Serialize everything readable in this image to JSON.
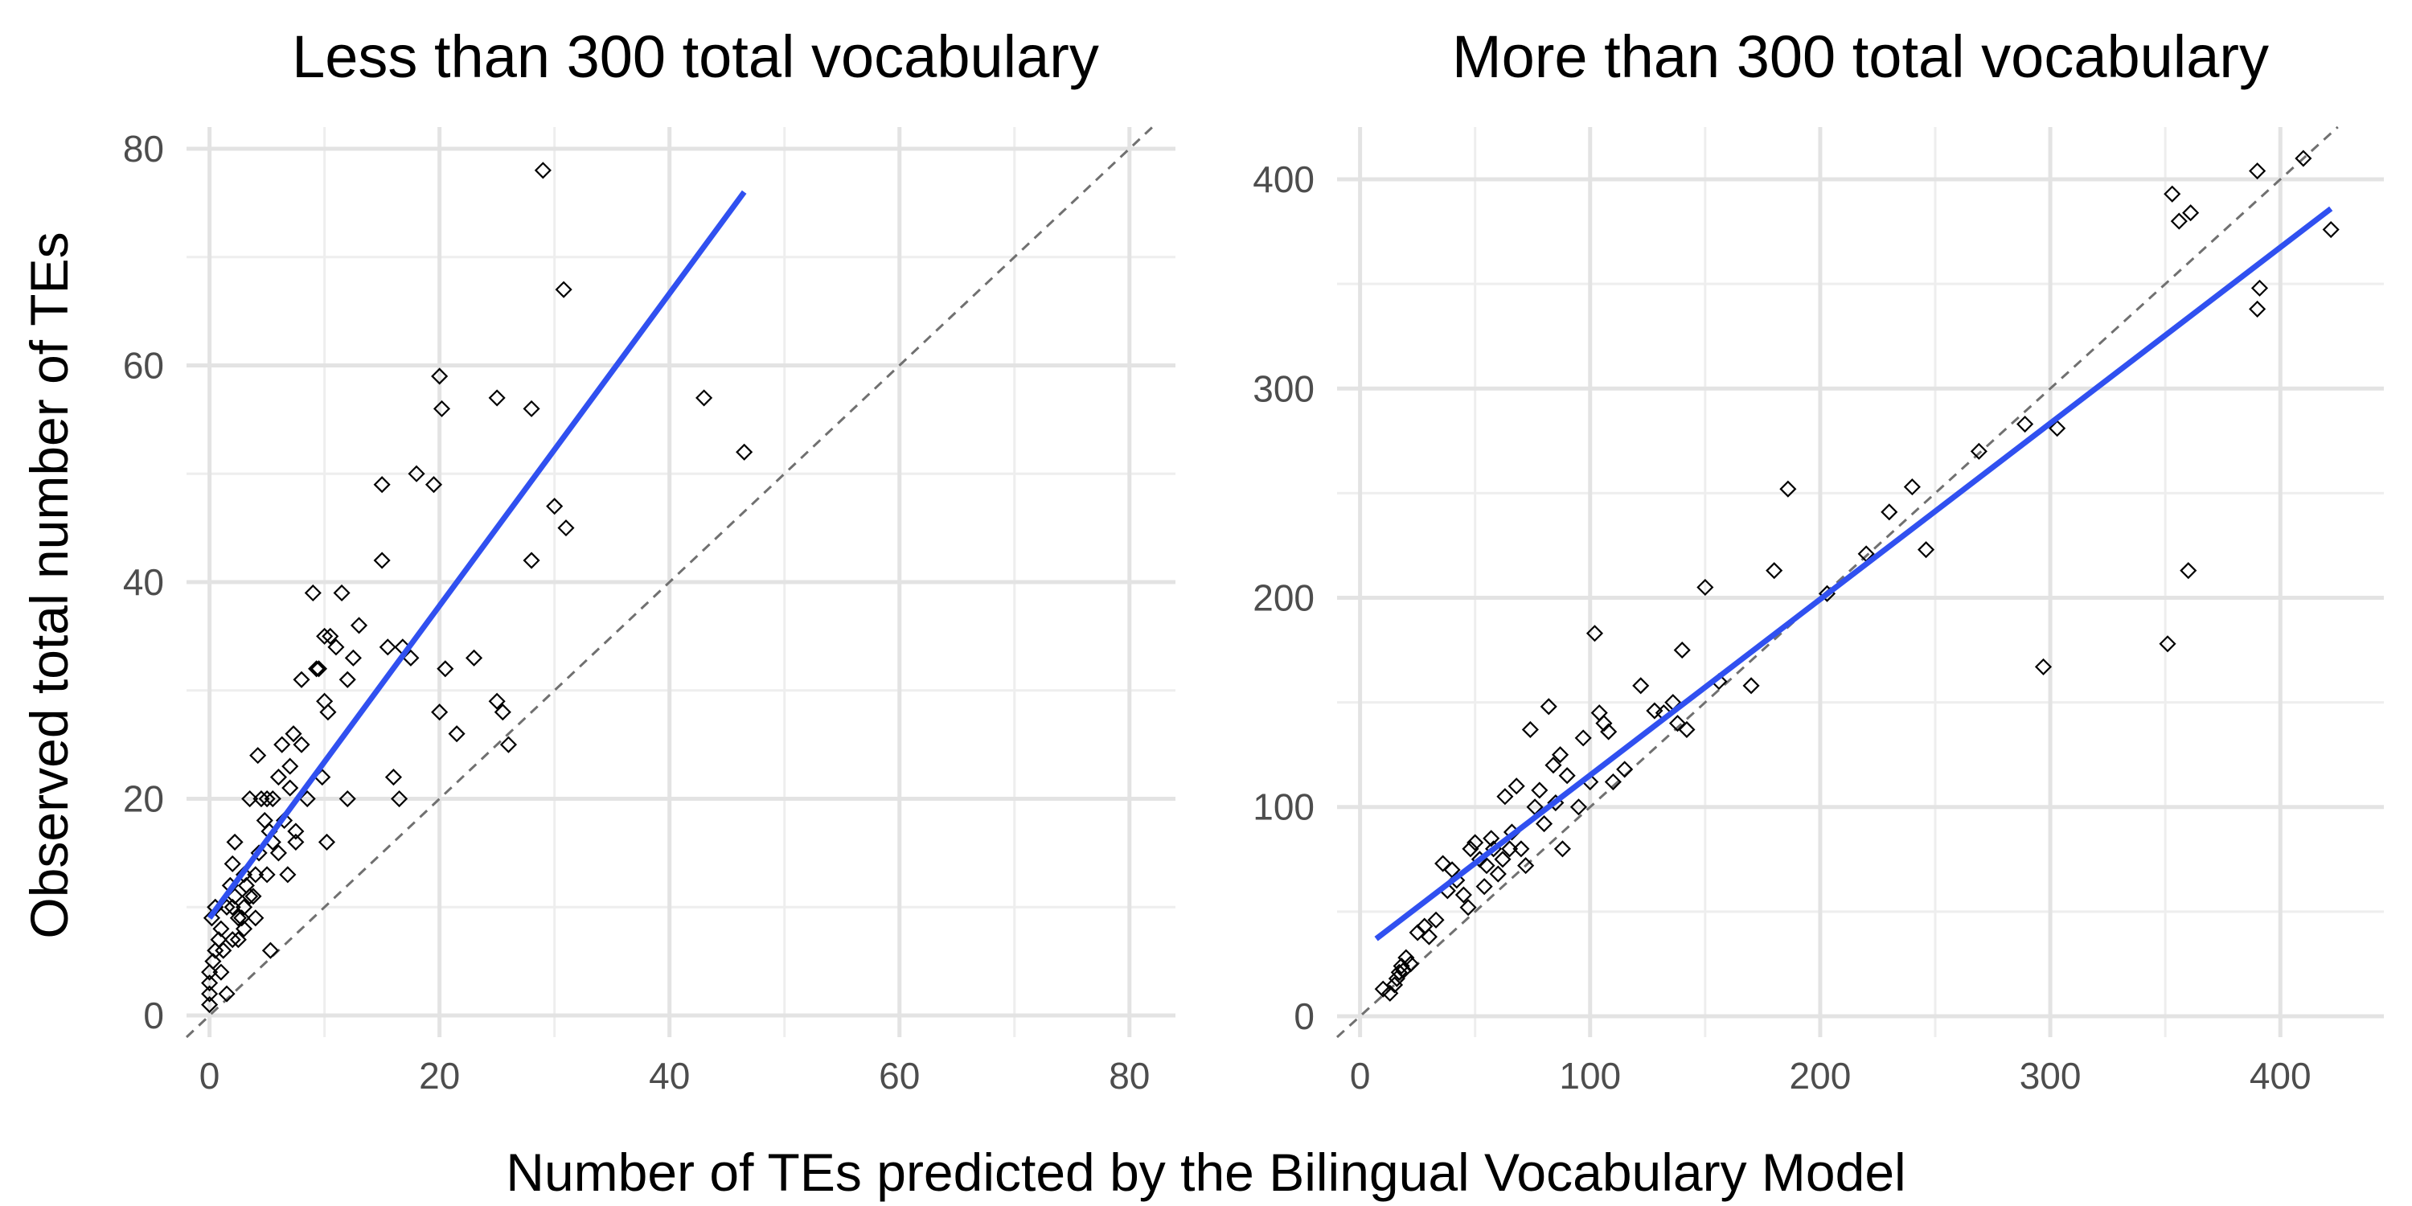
{
  "figure": {
    "xlabel": "Number of TEs predicted by the Bilingual Vocabulary Model",
    "ylabel": "Observed total number of TEs"
  },
  "colors": {
    "background": "#ffffff",
    "grid_major": "#e3e3e3",
    "grid_minor": "#eeeeee",
    "fit_line": "#3050f0",
    "identity_line": "#707070",
    "point_stroke": "#000000",
    "tick_text": "#4d4d4d"
  },
  "chart_data": [
    {
      "type": "scatter",
      "title": "Less than 300 total vocabulary",
      "xlim": [
        -2,
        84
      ],
      "ylim": [
        -2,
        82
      ],
      "xticks": [
        0,
        20,
        40,
        60,
        80
      ],
      "yticks": [
        0,
        20,
        40,
        60,
        80
      ],
      "grid": true,
      "marker": "open-diamond",
      "points": [
        [
          0,
          1
        ],
        [
          0,
          2
        ],
        [
          0,
          3
        ],
        [
          0,
          4
        ],
        [
          0.3,
          5
        ],
        [
          0.5,
          6
        ],
        [
          0.8,
          7
        ],
        [
          1,
          8
        ],
        [
          0.2,
          9
        ],
        [
          1.5,
          10
        ],
        [
          2,
          10
        ],
        [
          0.5,
          10
        ],
        [
          1,
          4
        ],
        [
          1.5,
          2
        ],
        [
          2,
          7
        ],
        [
          1.8,
          12
        ],
        [
          2.2,
          11
        ],
        [
          2.5,
          9
        ],
        [
          3,
          8
        ],
        [
          3,
          10
        ],
        [
          3.2,
          12
        ],
        [
          3.5,
          11
        ],
        [
          4,
          9
        ],
        [
          4,
          13
        ],
        [
          4.3,
          15
        ],
        [
          4.5,
          20
        ],
        [
          5,
          20
        ],
        [
          4.8,
          18
        ],
        [
          5.2,
          17
        ],
        [
          5.5,
          16
        ],
        [
          5.5,
          20
        ],
        [
          6,
          15
        ],
        [
          6,
          22
        ],
        [
          6.3,
          25
        ],
        [
          6.5,
          18
        ],
        [
          7,
          21
        ],
        [
          7,
          23
        ],
        [
          7.3,
          26
        ],
        [
          7.5,
          17
        ],
        [
          8,
          25
        ],
        [
          8,
          31
        ],
        [
          8.5,
          20
        ],
        [
          9,
          39
        ],
        [
          9.3,
          32
        ],
        [
          9.5,
          32
        ],
        [
          9.8,
          22
        ],
        [
          10,
          29
        ],
        [
          10,
          35
        ],
        [
          10.3,
          28
        ],
        [
          10.5,
          35
        ],
        [
          11,
          34
        ],
        [
          11.5,
          39
        ],
        [
          12,
          31
        ],
        [
          12,
          20
        ],
        [
          12.5,
          33
        ],
        [
          13,
          36
        ],
        [
          2,
          14
        ],
        [
          2.2,
          16
        ],
        [
          3.5,
          20
        ],
        [
          4.2,
          24
        ],
        [
          5,
          13
        ],
        [
          5.3,
          6
        ],
        [
          6.8,
          13
        ],
        [
          7.5,
          16
        ],
        [
          10.2,
          16
        ],
        [
          3,
          13
        ],
        [
          2.5,
          7
        ],
        [
          3.8,
          11
        ],
        [
          1.2,
          6
        ],
        [
          2.8,
          9
        ],
        [
          15,
          42
        ],
        [
          15,
          49
        ],
        [
          15.5,
          34
        ],
        [
          16,
          22
        ],
        [
          16.5,
          20
        ],
        [
          16.8,
          34
        ],
        [
          17.5,
          33
        ],
        [
          18,
          50
        ],
        [
          19.5,
          49
        ],
        [
          20,
          59
        ],
        [
          20.2,
          56
        ],
        [
          20.5,
          32
        ],
        [
          20,
          28
        ],
        [
          21.5,
          26
        ],
        [
          23,
          33
        ],
        [
          25,
          57
        ],
        [
          25,
          29
        ],
        [
          25.5,
          28
        ],
        [
          26,
          25
        ],
        [
          28,
          56
        ],
        [
          28,
          42
        ],
        [
          29,
          78
        ],
        [
          30,
          47
        ],
        [
          30.8,
          67
        ],
        [
          31,
          45
        ],
        [
          43,
          57
        ],
        [
          46.5,
          52
        ]
      ],
      "fit_line": [
        [
          0,
          9
        ],
        [
          46.5,
          76
        ]
      ],
      "identity_line": [
        [
          -2,
          -2
        ],
        [
          82,
          82
        ]
      ]
    },
    {
      "type": "scatter",
      "title": "More than 300 total vocabulary",
      "xlim": [
        -10,
        445
      ],
      "ylim": [
        -10,
        425
      ],
      "xticks": [
        0,
        100,
        200,
        300,
        400
      ],
      "yticks": [
        0,
        100,
        200,
        300,
        400
      ],
      "grid": true,
      "marker": "open-diamond",
      "points": [
        [
          10,
          13
        ],
        [
          13,
          11
        ],
        [
          15,
          15
        ],
        [
          16,
          18
        ],
        [
          17,
          21
        ],
        [
          18,
          24
        ],
        [
          19,
          22
        ],
        [
          20,
          28
        ],
        [
          22,
          25
        ],
        [
          25,
          40
        ],
        [
          28,
          43
        ],
        [
          30,
          38
        ],
        [
          33,
          46
        ],
        [
          36,
          73
        ],
        [
          38,
          60
        ],
        [
          40,
          70
        ],
        [
          42,
          65
        ],
        [
          45,
          58
        ],
        [
          47,
          52
        ],
        [
          48,
          80
        ],
        [
          50,
          83
        ],
        [
          52,
          75
        ],
        [
          54,
          62
        ],
        [
          55,
          72
        ],
        [
          57,
          85
        ],
        [
          58,
          80
        ],
        [
          60,
          68
        ],
        [
          62,
          75
        ],
        [
          63,
          105
        ],
        [
          65,
          80
        ],
        [
          66,
          88
        ],
        [
          68,
          110
        ],
        [
          70,
          80
        ],
        [
          72,
          72
        ],
        [
          74,
          137
        ],
        [
          76,
          100
        ],
        [
          78,
          108
        ],
        [
          80,
          92
        ],
        [
          82,
          148
        ],
        [
          84,
          120
        ],
        [
          85,
          102
        ],
        [
          87,
          125
        ],
        [
          88,
          80
        ],
        [
          90,
          115
        ],
        [
          95,
          100
        ],
        [
          97,
          133
        ],
        [
          100,
          112
        ],
        [
          102,
          183
        ],
        [
          104,
          145
        ],
        [
          106,
          140
        ],
        [
          108,
          136
        ],
        [
          110,
          112
        ],
        [
          115,
          118
        ],
        [
          122,
          158
        ],
        [
          128,
          146
        ],
        [
          132,
          145
        ],
        [
          136,
          150
        ],
        [
          138,
          140
        ],
        [
          140,
          175
        ],
        [
          142,
          137
        ],
        [
          150,
          205
        ],
        [
          156,
          160
        ],
        [
          170,
          158
        ],
        [
          180,
          213
        ],
        [
          186,
          252
        ],
        [
          203,
          202
        ],
        [
          220,
          221
        ],
        [
          230,
          241
        ],
        [
          240,
          253
        ],
        [
          246,
          223
        ],
        [
          269,
          270
        ],
        [
          289,
          283
        ],
        [
          297,
          167
        ],
        [
          303,
          281
        ],
        [
          351,
          178
        ],
        [
          353,
          393
        ],
        [
          356,
          380
        ],
        [
          360,
          213
        ],
        [
          361,
          384
        ],
        [
          390,
          404
        ],
        [
          390,
          338
        ],
        [
          391,
          348
        ],
        [
          410,
          410
        ],
        [
          422,
          376
        ]
      ],
      "fit_line": [
        [
          7,
          37
        ],
        [
          422,
          386
        ]
      ],
      "identity_line": [
        [
          -10,
          -10
        ],
        [
          425,
          425
        ]
      ]
    }
  ]
}
